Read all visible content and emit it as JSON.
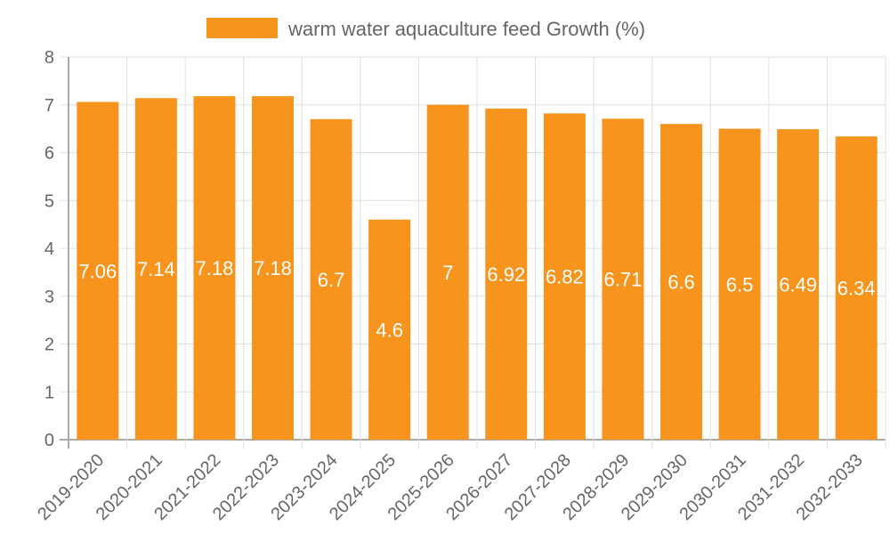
{
  "chart_data": {
    "type": "bar",
    "title": "",
    "xlabel": "",
    "ylabel": "",
    "legend": {
      "position": "top",
      "entries": [
        "warm water aquaculture feed Growth (%)"
      ]
    },
    "categories": [
      "2019-2020",
      "2020-2021",
      "2021-2022",
      "2022-2023",
      "2023-2024",
      "2024-2025",
      "2025-2026",
      "2026-2027",
      "2027-2028",
      "2028-2029",
      "2029-2030",
      "2030-2031",
      "2031-2032",
      "2032-2033"
    ],
    "series": [
      {
        "name": "warm water aquaculture feed Growth (%)",
        "color": "#f7941d",
        "values": [
          7.06,
          7.14,
          7.18,
          7.18,
          6.7,
          4.6,
          7,
          6.92,
          6.82,
          6.71,
          6.6,
          6.5,
          6.49,
          6.34
        ]
      }
    ],
    "ylim": [
      0,
      8
    ],
    "yticks": [
      0,
      1,
      2,
      3,
      4,
      5,
      6,
      7,
      8
    ],
    "grid": true,
    "data_labels": true
  }
}
